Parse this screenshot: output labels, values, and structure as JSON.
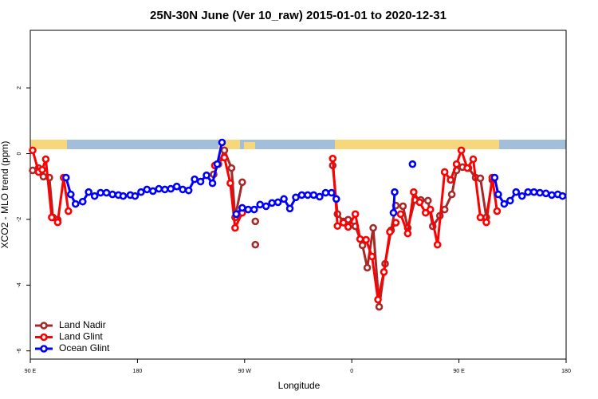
{
  "chart_data": {
    "type": "line",
    "title": "25N-30N June (Ver 10_raw)   2015-01-01 to 2020-12-31",
    "xlabel": "Longitude",
    "ylabel": "XCO2 - MLO trend (ppm)",
    "xlim": [
      90,
      540
    ],
    "ylim": [
      -6.25,
      3.75
    ],
    "xticks": [
      {
        "value": 90,
        "label": "90 E"
      },
      180,
      {
        "value": 270,
        "label": "90 W"
      },
      {
        "value": 360,
        "label": "0"
      },
      {
        "value": 450,
        "label": "90 E"
      },
      {
        "value": 540,
        "label": "180"
      }
    ],
    "yticks": [
      -6,
      -4,
      -2,
      0,
      2
    ],
    "legend": "bottomleft",
    "series": [
      {
        "name": "Land Nadir",
        "color": "#a52a2a",
        "x": [
          92,
          97,
          101,
          106,
          109,
          113,
          null,
          244,
          248,
          253,
          259,
          262,
          268,
          null,
          279,
          null,
          279,
          null,
          344,
          348,
          353,
          357,
          363,
          369,
          373,
          378,
          383,
          388,
          393,
          397,
          403,
          407,
          413,
          418,
          424,
          428,
          434,
          438,
          444,
          448,
          453,
          458,
          464,
          468,
          473,
          478
        ],
        "values": [
          -0.51,
          -0.44,
          -0.7,
          -0.73,
          -1.94,
          -2.01,
          null,
          -0.63,
          -0.32,
          0.1,
          -0.44,
          -1.94,
          -0.87,
          null,
          -2.06,
          null,
          -2.77,
          null,
          -0.36,
          -1.84,
          -2.06,
          -2.01,
          -2.21,
          -2.79,
          -3.47,
          -2.26,
          -4.66,
          -3.35,
          -2.33,
          -1.58,
          -1.6,
          -2.26,
          -1.41,
          -1.41,
          -1.43,
          -2.21,
          -1.89,
          -1.7,
          -1.24,
          -0.51,
          -0.41,
          -0.44,
          -0.73,
          -0.75,
          -1.94,
          -0.8
        ]
      },
      {
        "name": "Land Glint",
        "color": "#ff0000",
        "x": [
          92,
          97,
          100,
          103,
          108,
          113,
          118,
          122,
          null,
          245,
          253,
          258,
          262,
          268,
          null,
          344,
          348,
          353,
          357,
          363,
          367,
          372,
          377,
          382,
          387,
          392,
          397,
          null,
          401,
          407,
          412,
          417,
          422,
          426,
          432,
          438,
          443,
          448,
          452,
          457,
          462,
          468,
          473,
          478,
          482
        ],
        "values": [
          0.1,
          -0.56,
          -0.49,
          -0.17,
          -1.94,
          -2.09,
          -0.73,
          -1.75,
          null,
          -0.36,
          -0.12,
          -0.9,
          -2.26,
          -1.8,
          null,
          -0.15,
          -2.2,
          -2.1,
          -2.23,
          -1.84,
          -2.6,
          -2.62,
          -3.13,
          -4.44,
          -3.6,
          -2.38,
          -2.1,
          null,
          -1.84,
          -2.43,
          -1.17,
          -1.48,
          -1.8,
          -1.7,
          -2.77,
          -0.56,
          -0.8,
          -0.32,
          0.1,
          -0.44,
          -0.17,
          -1.94,
          -2.09,
          -0.73,
          -1.75
        ]
      },
      {
        "name": "Ocean Glint",
        "color": "#0000ff",
        "x": [
          120,
          124,
          128,
          134,
          139,
          144,
          149,
          154,
          159,
          164,
          168,
          174,
          178,
          183,
          188,
          193,
          198,
          203,
          208,
          213,
          218,
          223,
          228,
          233,
          238,
          243,
          247,
          251,
          null,
          263,
          268,
          273,
          278,
          283,
          288,
          293,
          298,
          303,
          308,
          313,
          318,
          323,
          328,
          333,
          338,
          343,
          347,
          null,
          395,
          396,
          null,
          411,
          null,
          480,
          483,
          488,
          493,
          498,
          503,
          508,
          513,
          518,
          523,
          528,
          533,
          537
        ],
        "values": [
          -0.73,
          -1.24,
          -1.53,
          -1.46,
          -1.17,
          -1.29,
          -1.19,
          -1.19,
          -1.24,
          -1.26,
          -1.29,
          -1.26,
          -1.29,
          -1.17,
          -1.09,
          -1.14,
          -1.07,
          -1.09,
          -1.07,
          -1.0,
          -1.09,
          -1.12,
          -0.78,
          -0.85,
          -0.66,
          -0.9,
          -0.32,
          0.34,
          null,
          -1.84,
          -1.65,
          -1.7,
          -1.7,
          -1.55,
          -1.6,
          -1.5,
          -1.48,
          -1.38,
          -1.67,
          -1.33,
          -1.26,
          -1.26,
          -1.26,
          -1.31,
          -1.19,
          -1.19,
          -1.38,
          null,
          -1.8,
          -1.17,
          null,
          -0.32,
          null,
          -0.73,
          -1.24,
          -1.53,
          -1.43,
          -1.17,
          -1.29,
          -1.17,
          -1.17,
          -1.19,
          -1.21,
          -1.26,
          -1.24,
          -1.29
        ]
      }
    ]
  }
}
